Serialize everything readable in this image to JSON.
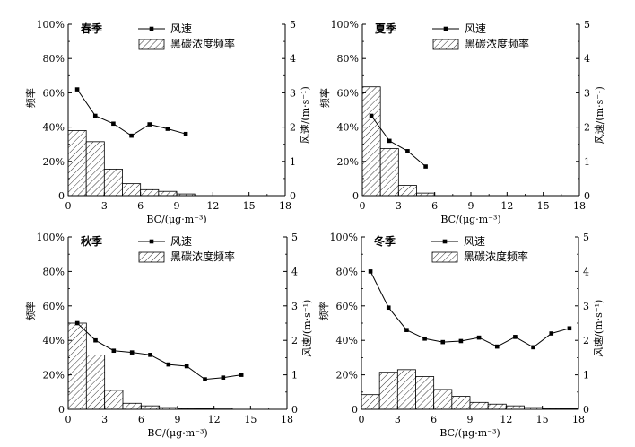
{
  "legend": {
    "wind_label": "风速",
    "bc_label": "黑碳浓度频率"
  },
  "axes": {
    "xlabel": "BC/(μg·m⁻³)",
    "ylabel_left": "频率",
    "ylabel_right": "风速/(m·s⁻¹)",
    "x_ticks": [
      "0",
      "3",
      "6",
      "9",
      "12",
      "15",
      "18"
    ],
    "y_left_ticks": [
      "0",
      "20%",
      "40%",
      "60%",
      "80%",
      "100%"
    ],
    "y_right_ticks": [
      "0",
      "1",
      "2",
      "3",
      "4",
      "5"
    ]
  },
  "chart_data": [
    {
      "type": "bar+line",
      "title": "春季",
      "xlim": [
        0,
        18
      ],
      "ylim_left": [
        0,
        100
      ],
      "ylim_right": [
        0,
        5
      ],
      "bar_width": 1.5,
      "bars": {
        "name": "黑碳浓度频率",
        "x": [
          0.75,
          2.25,
          3.75,
          5.25,
          6.75,
          8.25,
          9.75
        ],
        "values": [
          38,
          31.5,
          15.5,
          7,
          3.5,
          2.5,
          1
        ]
      },
      "line": {
        "name": "风速",
        "x": [
          0.75,
          2.25,
          3.75,
          5.25,
          6.75,
          8.25,
          9.75
        ],
        "values": [
          3.1,
          2.33,
          2.1,
          1.75,
          2.08,
          1.95,
          1.8
        ]
      }
    },
    {
      "type": "bar+line",
      "title": "夏季",
      "xlim": [
        0,
        18
      ],
      "ylim_left": [
        0,
        100
      ],
      "ylim_right": [
        0,
        5
      ],
      "bar_width": 1.5,
      "bars": {
        "name": "黑碳浓度频率",
        "x": [
          0.75,
          2.25,
          3.75,
          5.25
        ],
        "values": [
          63.5,
          27.5,
          6,
          1.5
        ]
      },
      "line": {
        "name": "风速",
        "x": [
          0.75,
          2.25,
          3.75,
          5.25
        ],
        "values": [
          2.33,
          1.6,
          1.3,
          0.85
        ]
      }
    },
    {
      "type": "bar+line",
      "title": "秋季",
      "xlim": [
        0,
        18
      ],
      "ylim_left": [
        0,
        100
      ],
      "ylim_right": [
        0,
        5
      ],
      "bar_width": 1.5,
      "bars": {
        "name": "黑碳浓度频率",
        "x": [
          0.75,
          2.25,
          3.75,
          5.25,
          6.75,
          8.25,
          9.75,
          11.25,
          12.75
        ],
        "values": [
          50,
          31.5,
          11,
          3.5,
          2,
          1,
          0.5,
          0.3,
          0.2
        ]
      },
      "line": {
        "name": "风速",
        "x": [
          0.75,
          2.25,
          3.75,
          5.25,
          6.75,
          8.25,
          9.75,
          11.25,
          12.75,
          14.25
        ],
        "values": [
          2.5,
          2.0,
          1.7,
          1.65,
          1.58,
          1.3,
          1.25,
          0.87,
          0.92,
          1.0
        ]
      }
    },
    {
      "type": "bar+line",
      "title": "冬季",
      "xlim": [
        0,
        18
      ],
      "ylim_left": [
        0,
        100
      ],
      "ylim_right": [
        0,
        5
      ],
      "bar_width": 1.5,
      "bars": {
        "name": "黑碳浓度频率",
        "x": [
          0.75,
          2.25,
          3.75,
          5.25,
          6.75,
          8.25,
          9.75,
          11.25,
          12.75,
          14.25,
          15.75,
          17.25
        ],
        "values": [
          8.5,
          21.5,
          23,
          19,
          11.5,
          7.5,
          4,
          3,
          2,
          1,
          0.5,
          0.3
        ]
      },
      "line": {
        "name": "风速",
        "x": [
          0.75,
          2.25,
          3.75,
          5.25,
          6.75,
          8.25,
          9.75,
          11.25,
          12.75,
          14.25,
          15.75,
          17.25
        ],
        "values": [
          4.0,
          2.95,
          2.3,
          2.05,
          1.95,
          1.98,
          2.08,
          1.82,
          2.1,
          1.8,
          2.2,
          2.35
        ]
      }
    }
  ]
}
